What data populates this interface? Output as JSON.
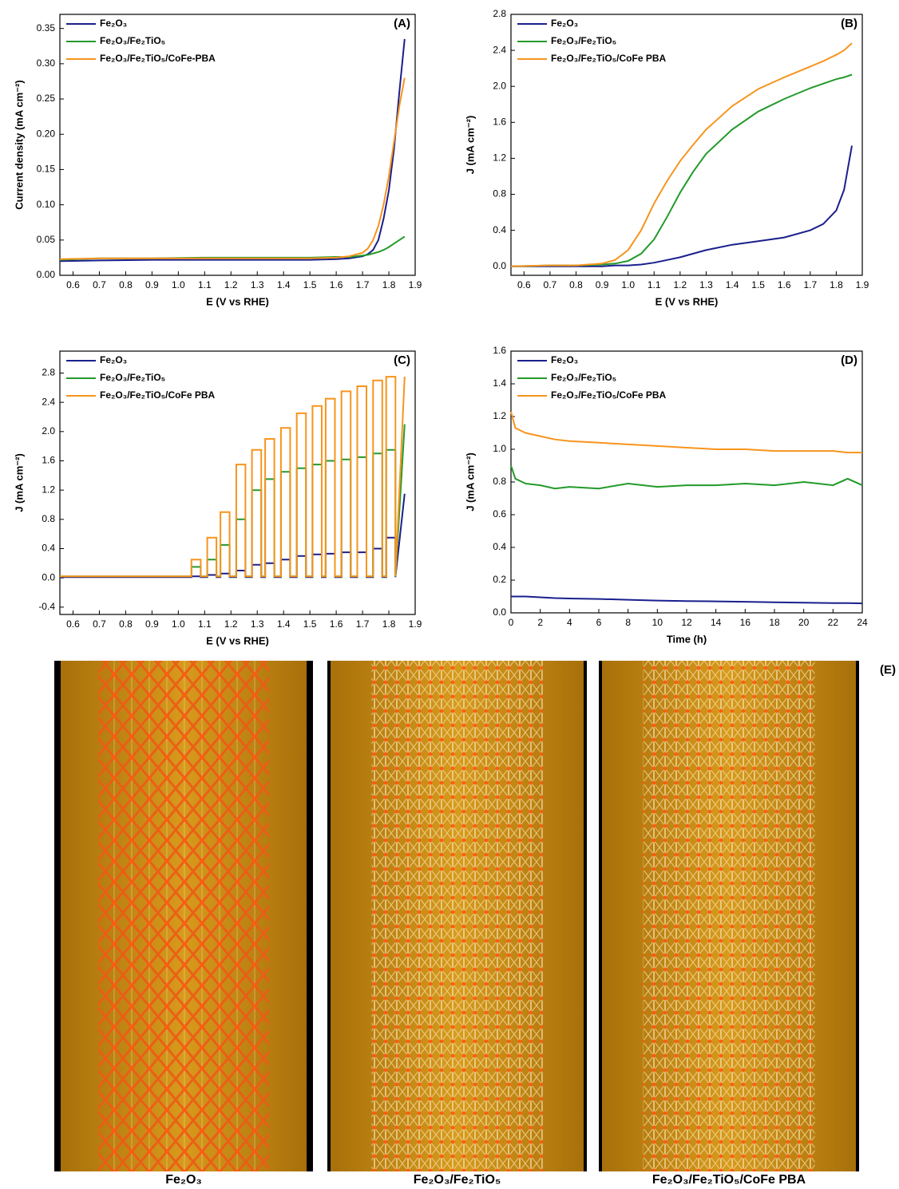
{
  "chart_data": [
    {
      "type": "line",
      "title": "(A)",
      "xlabel": "E (V vs RHE)",
      "ylabel": "Current density (mA cm⁻²)",
      "legend": "upper left",
      "xlim": [
        0.55,
        1.9
      ],
      "ylim": [
        0,
        0.37
      ],
      "xticks": [
        0.6,
        0.7,
        0.8,
        0.9,
        {
          "value": 1,
          "label": "1.0"
        },
        1.1,
        1.2,
        1.3,
        1.4,
        1.5,
        1.6,
        1.7,
        1.8,
        1.9
      ],
      "yticks": [
        {
          "value": 0,
          "label": "0.00"
        },
        0.05,
        {
          "value": 0.1,
          "label": "0.10"
        },
        0.15,
        {
          "value": 0.2,
          "label": "0.20"
        },
        0.25,
        {
          "value": 0.3,
          "label": "0.30"
        },
        0.35
      ],
      "x": [
        0.55,
        0.7,
        0.9,
        1.1,
        1.3,
        1.5,
        1.6,
        1.65,
        1.7,
        1.72,
        1.74,
        1.76,
        1.78,
        1.8,
        1.82,
        1.84,
        1.86
      ],
      "series": [
        {
          "name": "Fe₂O₃",
          "color": "#1a1f8c",
          "values": [
            0.02,
            0.021,
            0.022,
            0.022,
            0.022,
            0.022,
            0.023,
            0.024,
            0.027,
            0.03,
            0.036,
            0.05,
            0.08,
            0.12,
            0.18,
            0.26,
            0.335
          ]
        },
        {
          "name": "Fe₂O₃/Fe₂TiO₅",
          "color": "#239a2a",
          "values": [
            0.022,
            0.024,
            0.024,
            0.025,
            0.025,
            0.025,
            0.026,
            0.026,
            0.028,
            0.029,
            0.031,
            0.033,
            0.036,
            0.04,
            0.045,
            0.05,
            0.055
          ]
        },
        {
          "name": "Fe₂O₃/Fe₂TiO₅/CoFe-PBA",
          "color": "#f7941d",
          "values": [
            0.023,
            0.024,
            0.024,
            0.024,
            0.024,
            0.024,
            0.025,
            0.027,
            0.032,
            0.038,
            0.05,
            0.07,
            0.1,
            0.14,
            0.19,
            0.24,
            0.28
          ]
        }
      ]
    },
    {
      "type": "line",
      "title": "(B)",
      "xlabel": "E (V vs RHE)",
      "ylabel": "J (mA cm⁻²)",
      "legend": "upper left",
      "xlim": [
        0.55,
        1.9
      ],
      "ylim": [
        -0.1,
        2.8
      ],
      "xticks": [
        0.6,
        0.7,
        0.8,
        0.9,
        {
          "value": 1,
          "label": "1.0"
        },
        1.1,
        1.2,
        1.3,
        1.4,
        1.5,
        1.6,
        1.7,
        1.8,
        1.9
      ],
      "yticks": [
        {
          "value": 0,
          "label": "0.0"
        },
        0.4,
        0.8,
        1.2,
        1.6,
        {
          "value": 2,
          "label": "2.0"
        },
        2.4,
        2.8
      ],
      "x": [
        0.55,
        0.7,
        0.8,
        0.9,
        0.95,
        1.0,
        1.05,
        1.1,
        1.15,
        1.2,
        1.25,
        1.3,
        1.4,
        1.5,
        1.6,
        1.7,
        1.75,
        1.8,
        1.83,
        1.86
      ],
      "series": [
        {
          "name": "Fe₂O₃",
          "color": "#1a1f8c",
          "values": [
            0,
            0,
            0,
            0,
            0.01,
            0.01,
            0.02,
            0.04,
            0.07,
            0.1,
            0.14,
            0.18,
            0.24,
            0.28,
            0.32,
            0.4,
            0.47,
            0.62,
            0.85,
            1.34
          ]
        },
        {
          "name": "Fe₂O₃/Fe₂TiO₅",
          "color": "#239a2a",
          "values": [
            0,
            0.01,
            0.01,
            0.02,
            0.03,
            0.06,
            0.14,
            0.3,
            0.55,
            0.82,
            1.05,
            1.25,
            1.52,
            1.72,
            1.86,
            1.98,
            2.03,
            2.08,
            2.1,
            2.13
          ]
        },
        {
          "name": "Fe₂O₃/Fe₂TiO₅/CoFe PBA",
          "color": "#f7941d",
          "values": [
            0,
            0.01,
            0.01,
            0.03,
            0.07,
            0.18,
            0.4,
            0.7,
            0.95,
            1.17,
            1.35,
            1.52,
            1.78,
            1.97,
            2.1,
            2.22,
            2.28,
            2.35,
            2.4,
            2.48
          ]
        }
      ]
    },
    {
      "type": "line",
      "title": "(C)",
      "xlabel": "E (V vs RHE)",
      "ylabel": "J (mA cm⁻²)",
      "legend": "upper left",
      "xlim": [
        0.55,
        1.9
      ],
      "ylim": [
        -0.5,
        3.1
      ],
      "xticks": [
        0.6,
        0.7,
        0.8,
        0.9,
        {
          "value": 1,
          "label": "1.0"
        },
        1.1,
        1.2,
        1.3,
        1.4,
        1.5,
        1.6,
        1.7,
        1.8,
        1.9
      ],
      "yticks": [
        -0.4,
        {
          "value": 0,
          "label": "0.0"
        },
        0.4,
        0.8,
        1.2,
        1.6,
        {
          "value": 2,
          "label": "2.0"
        },
        2.4,
        2.8
      ],
      "x": [
        0.55,
        1.05,
        1.05,
        1.085,
        1.085,
        1.11,
        1.11,
        1.145,
        1.145,
        1.16,
        1.16,
        1.195,
        1.195,
        1.22,
        1.22,
        1.255,
        1.255,
        1.28,
        1.28,
        1.315,
        1.315,
        1.33,
        1.33,
        1.365,
        1.365,
        1.39,
        1.39,
        1.425,
        1.425,
        1.45,
        1.45,
        1.485,
        1.485,
        1.51,
        1.51,
        1.545,
        1.545,
        1.56,
        1.56,
        1.595,
        1.595,
        1.62,
        1.62,
        1.655,
        1.655,
        1.68,
        1.68,
        1.715,
        1.715,
        1.74,
        1.74,
        1.775,
        1.775,
        1.79,
        1.79,
        1.825,
        1.825,
        1.86
      ],
      "series": [
        {
          "name": "Fe₂O₃",
          "color": "#1a1f8c",
          "values": [
            0.01,
            0.01,
            0.02,
            0.02,
            0.01,
            0.01,
            0.04,
            0.04,
            0.01,
            0.01,
            0.06,
            0.06,
            0.01,
            0.01,
            0.1,
            0.1,
            0.01,
            0.01,
            0.18,
            0.18,
            0.01,
            0.01,
            0.2,
            0.2,
            0.01,
            0.01,
            0.25,
            0.25,
            0.01,
            0.01,
            0.3,
            0.3,
            0.01,
            0.01,
            0.32,
            0.32,
            0.01,
            0.01,
            0.33,
            0.33,
            0.01,
            0.01,
            0.35,
            0.35,
            0.01,
            0.01,
            0.35,
            0.35,
            0.01,
            0.01,
            0.4,
            0.4,
            0.01,
            0.01,
            0.55,
            0.55,
            0.01,
            1.15
          ]
        },
        {
          "name": "Fe₂O₃/Fe₂TiO₅",
          "color": "#239a2a",
          "values": [
            0.02,
            0.02,
            0.15,
            0.15,
            0.02,
            0.02,
            0.25,
            0.25,
            0.02,
            0.02,
            0.45,
            0.45,
            0.02,
            0.02,
            0.8,
            0.8,
            0.02,
            0.02,
            1.2,
            1.2,
            0.02,
            0.02,
            1.35,
            1.35,
            0.02,
            0.02,
            1.45,
            1.45,
            0.02,
            0.02,
            1.5,
            1.5,
            0.02,
            0.02,
            1.55,
            1.55,
            0.02,
            0.02,
            1.6,
            1.6,
            0.02,
            0.02,
            1.62,
            1.62,
            0.02,
            0.02,
            1.65,
            1.65,
            0.02,
            0.02,
            1.7,
            1.7,
            0.02,
            0.02,
            1.75,
            1.75,
            0.02,
            2.1
          ]
        },
        {
          "name": "Fe₂O₃/Fe₂TiO₅/CoFe PBA",
          "color": "#f7941d",
          "values": [
            0.02,
            0.02,
            0.25,
            0.25,
            0.02,
            0.02,
            0.55,
            0.55,
            0.02,
            0.02,
            0.9,
            0.9,
            0.02,
            0.02,
            1.55,
            1.55,
            0.02,
            0.02,
            1.75,
            1.75,
            0.02,
            0.02,
            1.9,
            1.9,
            0.02,
            0.02,
            2.05,
            2.05,
            0.02,
            0.02,
            2.25,
            2.25,
            0.02,
            0.02,
            2.35,
            2.35,
            0.02,
            0.02,
            2.45,
            2.45,
            0.02,
            0.02,
            2.55,
            2.55,
            0.02,
            0.02,
            2.62,
            2.62,
            0.02,
            0.02,
            2.7,
            2.7,
            0.02,
            0.02,
            2.75,
            2.75,
            0.02,
            2.75
          ]
        }
      ]
    },
    {
      "type": "line",
      "title": "(D)",
      "xlabel": "Time (h)",
      "ylabel": "J (mA cm⁻²)",
      "legend": "upper left",
      "xlim": [
        0,
        24
      ],
      "ylim": [
        0,
        1.6
      ],
      "xticks": [
        0,
        2,
        4,
        6,
        8,
        10,
        12,
        14,
        16,
        18,
        20,
        22,
        24
      ],
      "yticks": [
        {
          "value": 0,
          "label": "0.0"
        },
        0.2,
        0.4,
        0.6,
        0.8,
        {
          "value": 1,
          "label": "1.0"
        },
        1.2,
        1.4,
        1.6
      ],
      "x": [
        0,
        0.3,
        1,
        2,
        3,
        4,
        6,
        8,
        10,
        12,
        14,
        16,
        18,
        20,
        22,
        23,
        24
      ],
      "series": [
        {
          "name": "Fe₂O₃",
          "color": "#1a1f8c",
          "values": [
            0.1,
            0.1,
            0.1,
            0.095,
            0.09,
            0.088,
            0.085,
            0.08,
            0.075,
            0.072,
            0.07,
            0.068,
            0.065,
            0.062,
            0.06,
            0.06,
            0.058
          ]
        },
        {
          "name": "Fe₂O₃/Fe₂TiO₅",
          "color": "#239a2a",
          "values": [
            0.9,
            0.82,
            0.79,
            0.78,
            0.76,
            0.77,
            0.76,
            0.79,
            0.77,
            0.78,
            0.78,
            0.79,
            0.78,
            0.8,
            0.78,
            0.82,
            0.78
          ]
        },
        {
          "name": "Fe₂O₃/Fe₂TiO₅/CoFe PBA",
          "color": "#f7941d",
          "values": [
            1.23,
            1.13,
            1.1,
            1.08,
            1.06,
            1.05,
            1.04,
            1.03,
            1.02,
            1.01,
            1,
            1,
            0.99,
            0.99,
            0.99,
            0.98,
            0.98
          ]
        }
      ]
    }
  ],
  "panel_e": {
    "label": "(E)",
    "captions": [
      {
        "text": "Fe₂O₃",
        "color": "#1f4fd0"
      },
      {
        "text": "Fe₂O₃/Fe₂TiO₅",
        "color": "#27b13a"
      },
      {
        "text": "Fe₂O₃/Fe₂TiO₅/CoFe PBA",
        "color": "#e8841c"
      }
    ]
  }
}
